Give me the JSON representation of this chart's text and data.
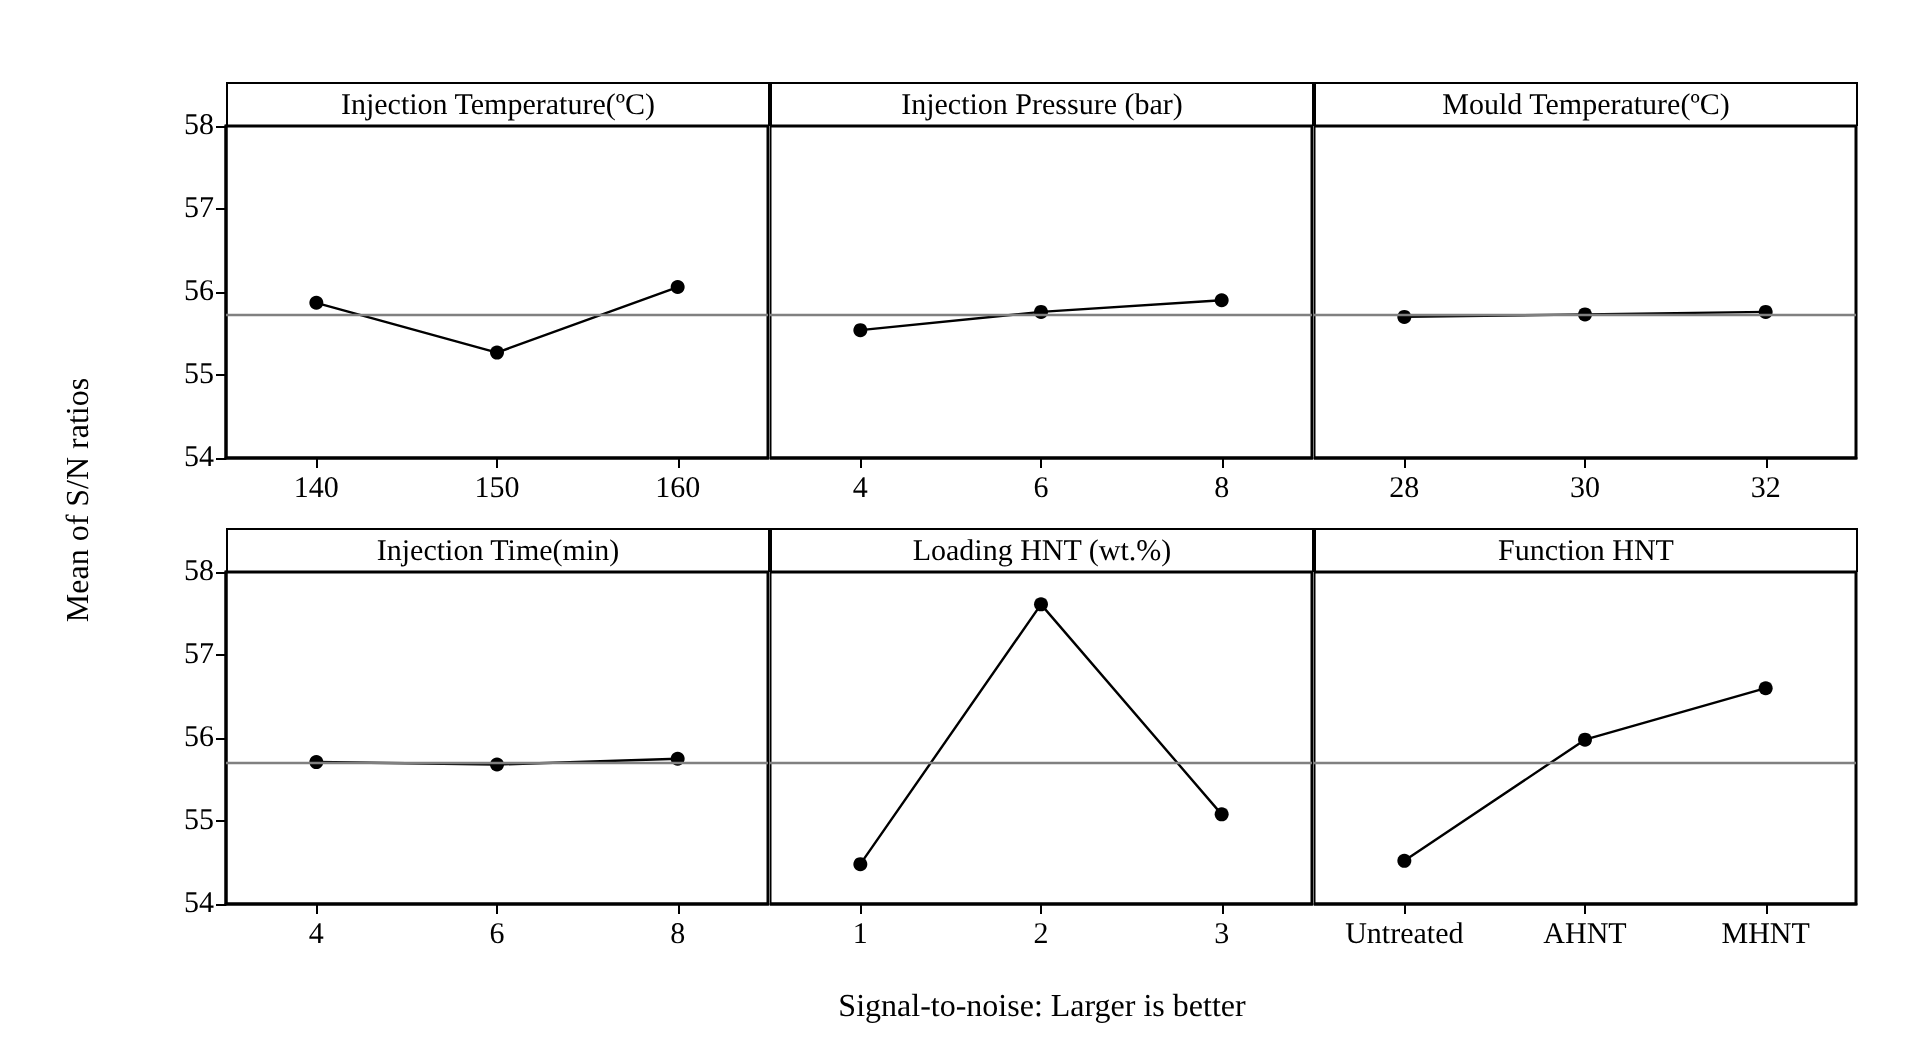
{
  "chart_data": [
    {
      "type": "line",
      "title": "Injection Temperature(ºC)",
      "ylabel": "Mean of S/N ratios",
      "x": [
        140,
        150,
        160
      ],
      "values": [
        55.87,
        55.27,
        56.06
      ],
      "color": "#000000",
      "marker": "circle",
      "xlim": [
        135,
        165
      ],
      "xticks": [
        140,
        150,
        160
      ],
      "ylim": [
        54,
        58
      ],
      "yticks": [
        54,
        55,
        56,
        57,
        58
      ],
      "ref_lines": [
        {
          "axis": "y",
          "value": 55.74,
          "color": "#808080"
        }
      ]
    },
    {
      "type": "line",
      "title": "Injection Pressure (bar)",
      "x": [
        4,
        6,
        8
      ],
      "values": [
        55.54,
        55.76,
        55.9
      ],
      "color": "#000000",
      "marker": "circle",
      "xlim": [
        3,
        9
      ],
      "xticks": [
        4,
        6,
        8
      ],
      "ylim": [
        54,
        58
      ],
      "yticks": [
        54,
        55,
        56,
        57,
        58
      ],
      "tick_labels": "x",
      "ref_lines": [
        {
          "axis": "y",
          "value": 55.74,
          "color": "#808080"
        }
      ]
    },
    {
      "type": "line",
      "title": "Mould Temperature(ºC)",
      "x": [
        28,
        30,
        32
      ],
      "values": [
        55.7,
        55.73,
        55.76
      ],
      "color": "#000000",
      "marker": "circle",
      "xlim": [
        27,
        33
      ],
      "xticks": [
        28,
        30,
        32
      ],
      "ylim": [
        54,
        58
      ],
      "yticks": [
        54,
        55,
        56,
        57,
        58
      ],
      "tick_labels": "x",
      "ref_lines": [
        {
          "axis": "y",
          "value": 55.74,
          "color": "#808080"
        }
      ]
    },
    {
      "type": "line",
      "title": "Injection Time(min)",
      "x": [
        4,
        6,
        8
      ],
      "values": [
        55.71,
        55.68,
        55.75
      ],
      "color": "#000000",
      "marker": "circle",
      "xlim": [
        3,
        9
      ],
      "xticks": [
        4,
        6,
        8
      ],
      "ylim": [
        54,
        58
      ],
      "yticks": [
        54,
        55,
        56,
        57,
        58
      ],
      "ref_lines": [
        {
          "axis": "y",
          "value": 55.71,
          "color": "#808080"
        }
      ]
    },
    {
      "type": "line",
      "title": "Loading HNT (wt.%)",
      "xlabel": "Signal-to-noise: Larger is better",
      "x": [
        1,
        2,
        3
      ],
      "values": [
        54.48,
        57.61,
        55.08
      ],
      "color": "#000000",
      "marker": "circle",
      "xlim": [
        0.5,
        3.5
      ],
      "xticks": [
        1,
        2,
        3
      ],
      "ylim": [
        54,
        58
      ],
      "yticks": [
        54,
        55,
        56,
        57,
        58
      ],
      "tick_labels": "x",
      "ref_lines": [
        {
          "axis": "y",
          "value": 55.71,
          "color": "#808080"
        }
      ]
    },
    {
      "type": "line",
      "title": "Function HNT",
      "categories": [
        "Untreated",
        "AHNT",
        "MHNT"
      ],
      "values": [
        54.52,
        55.98,
        56.6
      ],
      "color": "#000000",
      "marker": "circle",
      "ylim": [
        54,
        58
      ],
      "yticks": [
        54,
        55,
        56,
        57,
        58
      ],
      "tick_labels": "x",
      "ref_lines": [
        {
          "axis": "y",
          "value": 55.71,
          "color": "#808080"
        }
      ]
    }
  ]
}
